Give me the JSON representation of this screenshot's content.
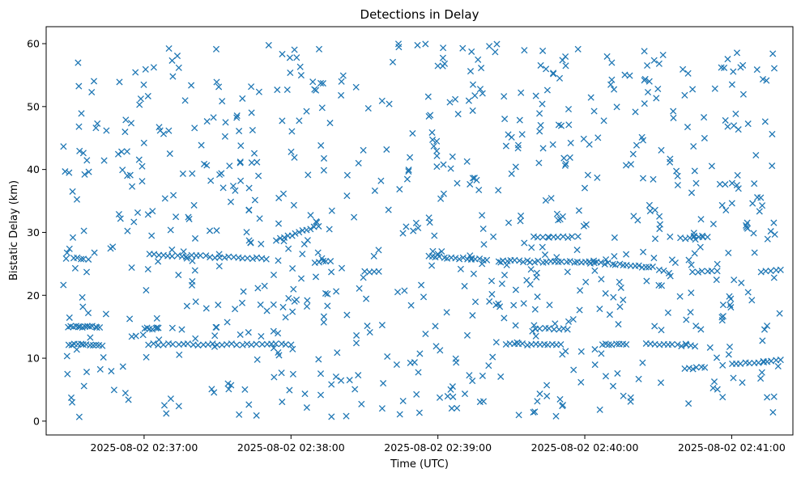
{
  "chart_data": {
    "type": "scatter",
    "title": "Detections in Delay",
    "xlabel": "Time (UTC)",
    "ylabel": "Bistatic Delay (km)",
    "marker": "x",
    "color": "#1f77b4",
    "grid": false,
    "legend": "none",
    "xlim_seconds_from_0236": [
      20,
      325
    ],
    "ylim": [
      -2.2,
      62.7
    ],
    "x_ticks": [
      {
        "t": 60,
        "label": "2025-08-02 02:37:00"
      },
      {
        "t": 120,
        "label": "2025-08-02 02:38:00"
      },
      {
        "t": 180,
        "label": "2025-08-02 02:39:00"
      },
      {
        "t": 240,
        "label": "2025-08-02 02:40:00"
      },
      {
        "t": 300,
        "label": "2025-08-02 02:41:00"
      }
    ],
    "y_ticks": [
      0,
      10,
      20,
      30,
      40,
      50,
      60
    ],
    "tracks": [
      {
        "t0": 29,
        "t1": 42,
        "y0": 15.0,
        "y1": 15.0,
        "n": 14
      },
      {
        "t0": 29,
        "t1": 43,
        "y0": 12.2,
        "y1": 12.0,
        "n": 12
      },
      {
        "t0": 31,
        "t1": 37,
        "y0": 26.0,
        "y1": 25.6,
        "n": 5
      },
      {
        "t0": 60,
        "t1": 66,
        "y0": 14.7,
        "y1": 14.7,
        "n": 6
      },
      {
        "t0": 62,
        "t1": 120,
        "y0": 12.2,
        "y1": 12.2,
        "n": 30
      },
      {
        "t0": 62,
        "t1": 110,
        "y0": 26.5,
        "y1": 25.8,
        "n": 26
      },
      {
        "t0": 114,
        "t1": 131,
        "y0": 28.8,
        "y1": 31.0,
        "n": 12
      },
      {
        "t0": 130,
        "t1": 136,
        "y0": 25.3,
        "y1": 25.3,
        "n": 5
      },
      {
        "t0": 150,
        "t1": 156,
        "y0": 23.8,
        "y1": 23.8,
        "n": 4
      },
      {
        "t0": 176,
        "t1": 200,
        "y0": 26.2,
        "y1": 25.6,
        "n": 16
      },
      {
        "t0": 205,
        "t1": 242,
        "y0": 25.5,
        "y1": 25.2,
        "n": 24
      },
      {
        "t0": 219,
        "t1": 237,
        "y0": 29.3,
        "y1": 29.2,
        "n": 10
      },
      {
        "t0": 208,
        "t1": 230,
        "y0": 12.2,
        "y1": 12.2,
        "n": 14
      },
      {
        "t0": 220,
        "t1": 233,
        "y0": 14.7,
        "y1": 14.7,
        "n": 8
      },
      {
        "t0": 242,
        "t1": 268,
        "y0": 25.3,
        "y1": 24.4,
        "n": 18
      },
      {
        "t0": 247,
        "t1": 257,
        "y0": 12.2,
        "y1": 12.2,
        "n": 8
      },
      {
        "t0": 265,
        "t1": 285,
        "y0": 12.2,
        "y1": 12.0,
        "n": 12
      },
      {
        "t0": 279,
        "t1": 290,
        "y0": 29.0,
        "y1": 29.4,
        "n": 7
      },
      {
        "t0": 284,
        "t1": 294,
        "y0": 23.8,
        "y1": 23.8,
        "n": 6
      },
      {
        "t0": 281,
        "t1": 289,
        "y0": 8.3,
        "y1": 8.6,
        "n": 6
      },
      {
        "t0": 300,
        "t1": 320,
        "y0": 9.0,
        "y1": 9.6,
        "n": 12
      },
      {
        "t0": 312,
        "t1": 320,
        "y0": 23.7,
        "y1": 23.9,
        "n": 5
      }
    ],
    "clutter": {
      "count": 780,
      "t_range": [
        27,
        320
      ],
      "y_range": [
        0.5,
        60
      ]
    }
  }
}
